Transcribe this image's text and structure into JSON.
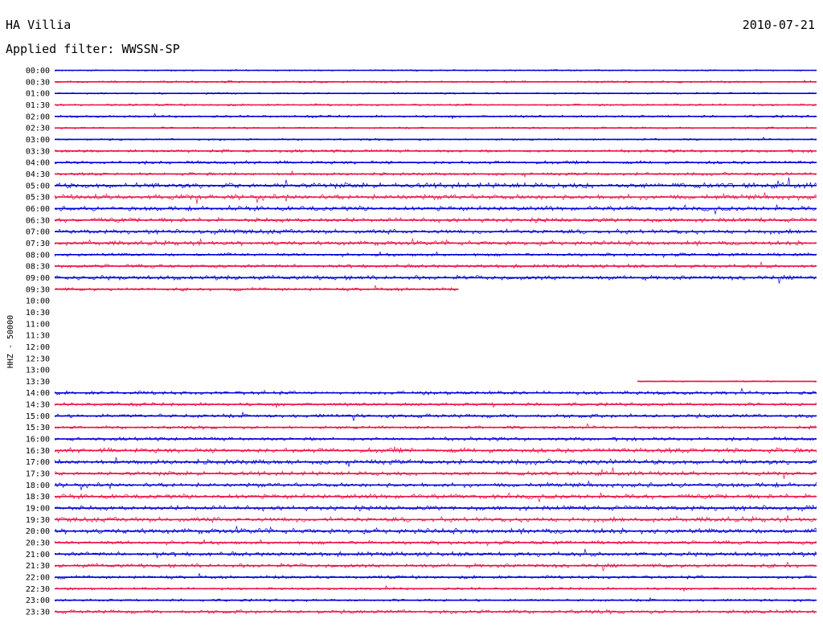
{
  "header": {
    "station": "HA Villia",
    "date": "2010-07-21",
    "filter": "Applied filter: WWSSN-SP"
  },
  "chart_data": {
    "type": "line",
    "title": "HA Villia",
    "ylabel": "HHZ - 50000",
    "colors": {
      "even_row": "#0000dd",
      "odd_row": "#ee1144"
    },
    "rows": [
      {
        "time": "00:00",
        "level": 0.05
      },
      {
        "time": "00:30",
        "level": 0.2
      },
      {
        "time": "01:00",
        "level": 0.12
      },
      {
        "time": "01:30",
        "level": 0.2
      },
      {
        "time": "02:00",
        "level": 0.25
      },
      {
        "time": "02:30",
        "level": 0.15
      },
      {
        "time": "03:00",
        "level": 0.12
      },
      {
        "time": "03:30",
        "level": 0.4
      },
      {
        "time": "04:00",
        "level": 0.5
      },
      {
        "time": "04:30",
        "level": 0.4
      },
      {
        "time": "05:00",
        "level": 1.0
      },
      {
        "time": "05:30",
        "level": 1.0
      },
      {
        "time": "06:00",
        "level": 0.8
      },
      {
        "time": "06:30",
        "level": 0.8
      },
      {
        "time": "07:00",
        "level": 0.8
      },
      {
        "time": "07:30",
        "level": 0.8
      },
      {
        "time": "08:00",
        "level": 0.5
      },
      {
        "time": "08:30",
        "level": 0.6
      },
      {
        "time": "09:00",
        "level": 0.8
      },
      {
        "time": "09:30",
        "level": 0.5,
        "end": 0.53
      },
      {
        "time": "10:00",
        "level": 0,
        "empty": true
      },
      {
        "time": "10:30",
        "level": 0,
        "empty": true
      },
      {
        "time": "11:00",
        "level": 0,
        "empty": true
      },
      {
        "time": "11:30",
        "level": 0,
        "empty": true
      },
      {
        "time": "12:00",
        "level": 0,
        "empty": true
      },
      {
        "time": "12:30",
        "level": 0,
        "empty": true
      },
      {
        "time": "13:00",
        "level": 0,
        "empty": true
      },
      {
        "time": "13:30",
        "level": 0.05,
        "start": 0.765
      },
      {
        "time": "14:00",
        "level": 0.6
      },
      {
        "time": "14:30",
        "level": 0.5
      },
      {
        "time": "15:00",
        "level": 0.6
      },
      {
        "time": "15:30",
        "level": 0.4
      },
      {
        "time": "16:00",
        "level": 0.6
      },
      {
        "time": "16:30",
        "level": 0.9
      },
      {
        "time": "17:00",
        "level": 0.9
      },
      {
        "time": "17:30",
        "level": 0.7
      },
      {
        "time": "18:00",
        "level": 0.8
      },
      {
        "time": "18:30",
        "level": 0.8
      },
      {
        "time": "19:00",
        "level": 0.9
      },
      {
        "time": "19:30",
        "level": 0.9
      },
      {
        "time": "20:00",
        "level": 1.0
      },
      {
        "time": "20:30",
        "level": 0.6
      },
      {
        "time": "21:00",
        "level": 0.8
      },
      {
        "time": "21:30",
        "level": 0.7
      },
      {
        "time": "22:00",
        "level": 0.5
      },
      {
        "time": "22:30",
        "level": 0.3
      },
      {
        "time": "23:00",
        "level": 0.3
      },
      {
        "time": "23:30",
        "level": 0.6
      }
    ]
  }
}
